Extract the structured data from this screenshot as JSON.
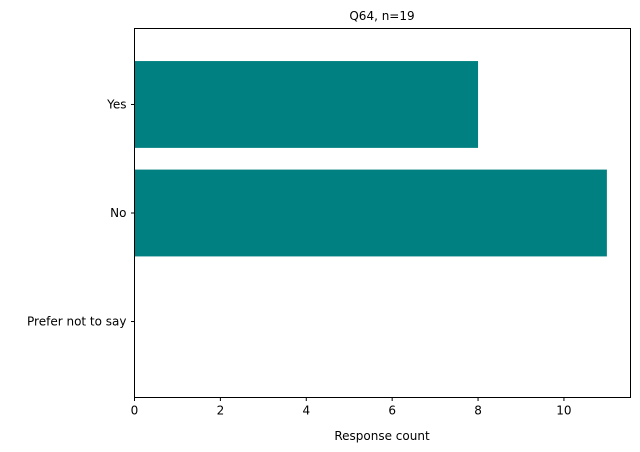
{
  "chart_data": {
    "type": "bar",
    "orientation": "horizontal",
    "title": "Q64, n=19",
    "xlabel": "Response count",
    "ylabel": "",
    "categories": [
      "Yes",
      "No",
      "Prefer not to say"
    ],
    "values": [
      8,
      11,
      0
    ],
    "xlim": [
      0,
      11.55
    ],
    "xticks": [
      0,
      2,
      4,
      6,
      8,
      10
    ],
    "grid": false,
    "colors": {
      "bar": "#008080"
    }
  }
}
